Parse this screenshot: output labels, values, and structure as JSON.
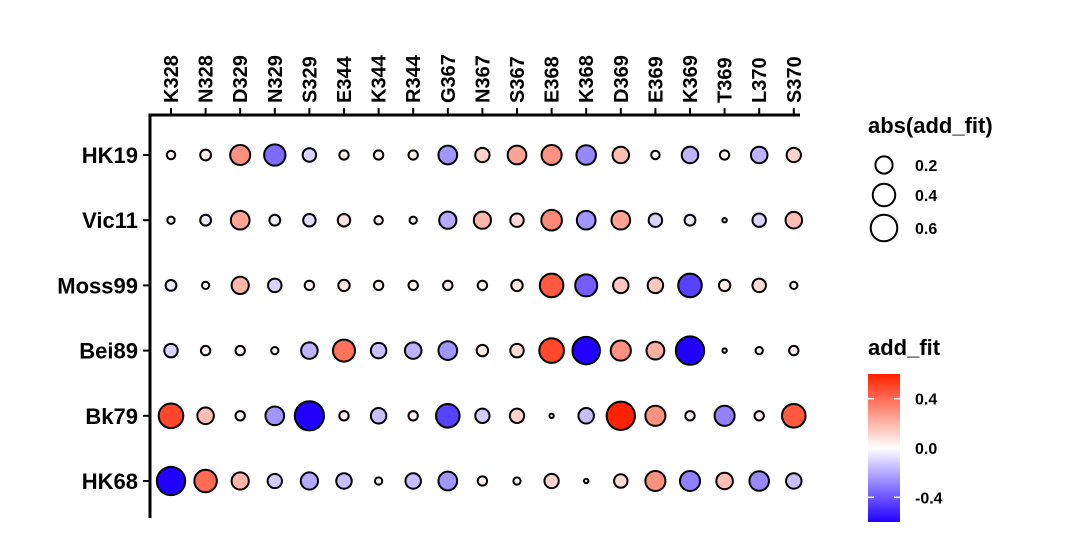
{
  "chart_data": {
    "type": "dotplot",
    "columns": [
      "K328",
      "N328",
      "D329",
      "N329",
      "S329",
      "E344",
      "K344",
      "R344",
      "G367",
      "N367",
      "S367",
      "E368",
      "K368",
      "D369",
      "E369",
      "K369",
      "T369",
      "L370",
      "S370"
    ],
    "rows": [
      "HK19",
      "Vic11",
      "Moss99",
      "Bei89",
      "Bk79",
      "HK68"
    ],
    "values": [
      [
        0.02,
        0.05,
        0.3,
        -0.35,
        -0.1,
        0.03,
        0.03,
        0.03,
        -0.25,
        0.12,
        0.25,
        0.3,
        -0.28,
        0.18,
        0.02,
        -0.18,
        0.03,
        -0.18,
        0.12
      ],
      [
        0.01,
        -0.05,
        0.25,
        -0.05,
        -0.08,
        0.08,
        0.02,
        0.01,
        -0.2,
        0.2,
        0.1,
        0.32,
        -0.25,
        0.25,
        -0.1,
        -0.05,
        0.0,
        -0.1,
        0.18
      ],
      [
        -0.05,
        0.01,
        0.2,
        -0.1,
        0.03,
        0.06,
        0.03,
        0.03,
        0.03,
        0.03,
        0.06,
        0.45,
        -0.38,
        0.15,
        0.15,
        -0.45,
        0.06,
        0.1,
        0.01
      ],
      [
        -0.1,
        0.03,
        0.03,
        0.01,
        -0.18,
        0.38,
        -0.15,
        -0.18,
        -0.25,
        0.06,
        0.1,
        0.5,
        -0.65,
        0.3,
        0.22,
        -0.7,
        0.0,
        0.01,
        0.03
      ],
      [
        0.5,
        0.18,
        0.03,
        -0.25,
        -0.75,
        0.03,
        -0.15,
        0.03,
        -0.45,
        -0.12,
        0.12,
        0.0,
        -0.15,
        0.7,
        0.3,
        0.03,
        -0.3,
        0.03,
        0.45
      ],
      [
        -0.7,
        0.4,
        0.2,
        -0.12,
        -0.2,
        -0.15,
        0.01,
        -0.15,
        -0.25,
        0.03,
        0.01,
        0.12,
        0.0,
        0.1,
        0.3,
        -0.3,
        0.18,
        -0.28,
        -0.15
      ]
    ],
    "size_legend": {
      "title": "abs(add_fit)",
      "breaks": [
        0.2,
        0.4,
        0.6
      ],
      "labels": [
        "0.2",
        "0.4",
        "0.6"
      ]
    },
    "color_legend": {
      "title": "add_fit",
      "range": [
        -0.6,
        0.6
      ],
      "breaks": [
        0.4,
        0.0,
        -0.4
      ],
      "labels": [
        "0.4",
        "0.0",
        "-0.4"
      ],
      "low_color": "#2200ff",
      "mid_color": "#ffffff",
      "high_color": "#ff2200"
    },
    "size_range_abs": [
      0,
      0.8
    ],
    "grid": false,
    "legend_position": "right"
  }
}
